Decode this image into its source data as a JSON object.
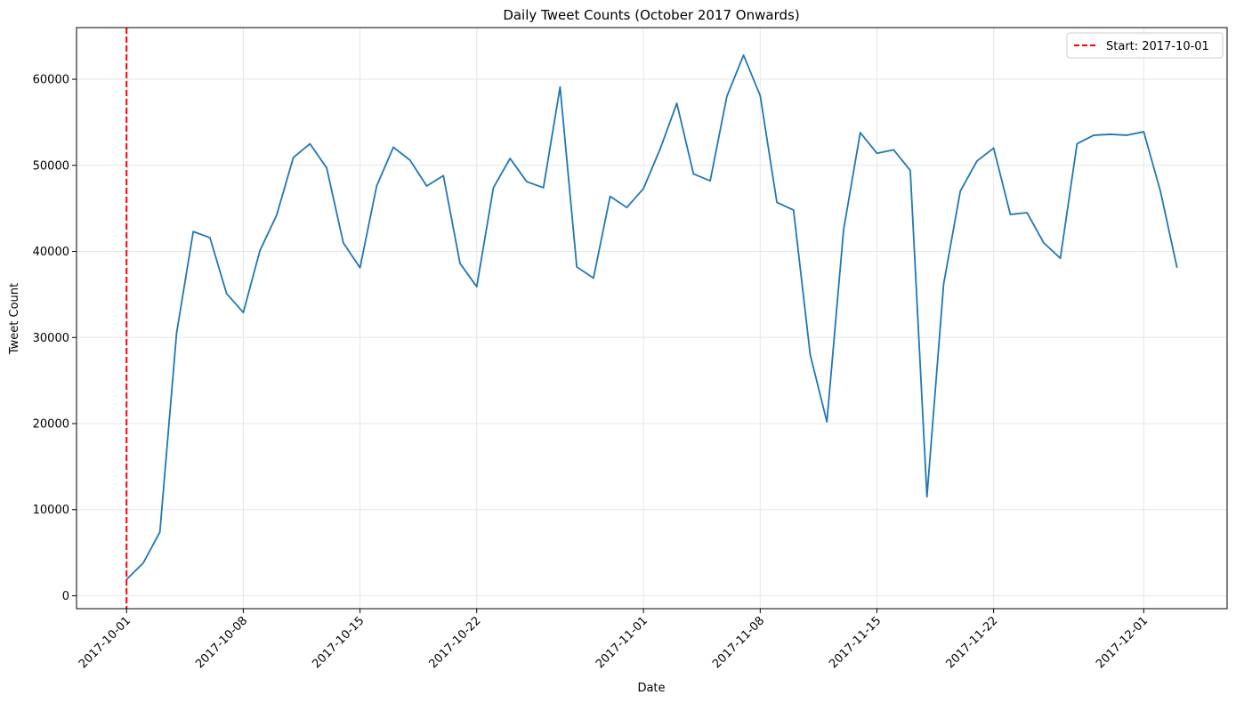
{
  "chart_data": {
    "type": "line",
    "title": "Daily Tweet Counts (October 2017 Onwards)",
    "xlabel": "Date",
    "ylabel": "Tweet Count",
    "x_type": "date",
    "xlim": [
      "2017-09-28",
      "2017-12-06"
    ],
    "ylim": [
      -1500,
      66000
    ],
    "y_ticks": [
      0,
      10000,
      20000,
      30000,
      40000,
      50000,
      60000
    ],
    "y_tick_labels": [
      "0",
      "10000",
      "20000",
      "30000",
      "40000",
      "50000",
      "60000"
    ],
    "x_ticks": [
      "2017-10-01",
      "2017-10-08",
      "2017-10-15",
      "2017-10-22",
      "2017-11-01",
      "2017-11-08",
      "2017-11-15",
      "2017-11-22",
      "2017-12-01"
    ],
    "x_tick_labels": [
      "2017-10-01",
      "2017-10-08",
      "2017-10-15",
      "2017-10-22",
      "2017-11-01",
      "2017-11-08",
      "2017-11-15",
      "2017-11-22",
      "2017-12-01"
    ],
    "x_tick_rotation": 45,
    "grid": true,
    "legend_position": "top-right",
    "series": [
      {
        "color": "#1f77b4",
        "x": [
          "2017-10-01",
          "2017-10-02",
          "2017-10-03",
          "2017-10-04",
          "2017-10-05",
          "2017-10-06",
          "2017-10-07",
          "2017-10-08",
          "2017-10-09",
          "2017-10-10",
          "2017-10-11",
          "2017-10-12",
          "2017-10-13",
          "2017-10-14",
          "2017-10-15",
          "2017-10-16",
          "2017-10-17",
          "2017-10-18",
          "2017-10-19",
          "2017-10-20",
          "2017-10-21",
          "2017-10-22",
          "2017-10-23",
          "2017-10-24",
          "2017-10-25",
          "2017-10-26",
          "2017-10-27",
          "2017-10-28",
          "2017-10-29",
          "2017-10-30",
          "2017-10-31",
          "2017-11-01",
          "2017-11-02",
          "2017-11-03",
          "2017-11-04",
          "2017-11-05",
          "2017-11-06",
          "2017-11-07",
          "2017-11-08",
          "2017-11-09",
          "2017-11-10",
          "2017-11-11",
          "2017-11-12",
          "2017-11-13",
          "2017-11-14",
          "2017-11-15",
          "2017-11-16",
          "2017-11-17",
          "2017-11-18",
          "2017-11-19",
          "2017-11-20",
          "2017-11-21",
          "2017-11-22",
          "2017-11-23",
          "2017-11-24",
          "2017-11-25",
          "2017-11-26",
          "2017-11-27",
          "2017-11-28",
          "2017-11-29",
          "2017-11-30",
          "2017-12-01",
          "2017-12-02",
          "2017-12-03"
        ],
        "values": [
          1900,
          3800,
          7400,
          30500,
          42300,
          41600,
          35100,
          32900,
          40100,
          44200,
          50900,
          52500,
          49700,
          41000,
          38100,
          47600,
          52100,
          50600,
          47600,
          48800,
          38600,
          35900,
          47400,
          50800,
          48100,
          47400,
          59100,
          38200,
          36900,
          46400,
          45100,
          47300,
          51900,
          57200,
          49000,
          48200,
          58000,
          62800,
          58100,
          45700,
          44800,
          28000,
          20200,
          42500,
          53800,
          51400,
          51800,
          49400,
          11500,
          36200,
          47000,
          50500,
          52000,
          44300,
          44500,
          41000,
          39200,
          52500,
          53500,
          53600,
          53500,
          53900,
          47000,
          38100
        ]
      }
    ],
    "vline": {
      "x": "2017-10-01",
      "label": "Start: 2017-10-01",
      "color": "#ff0000",
      "style": "dashed"
    }
  }
}
